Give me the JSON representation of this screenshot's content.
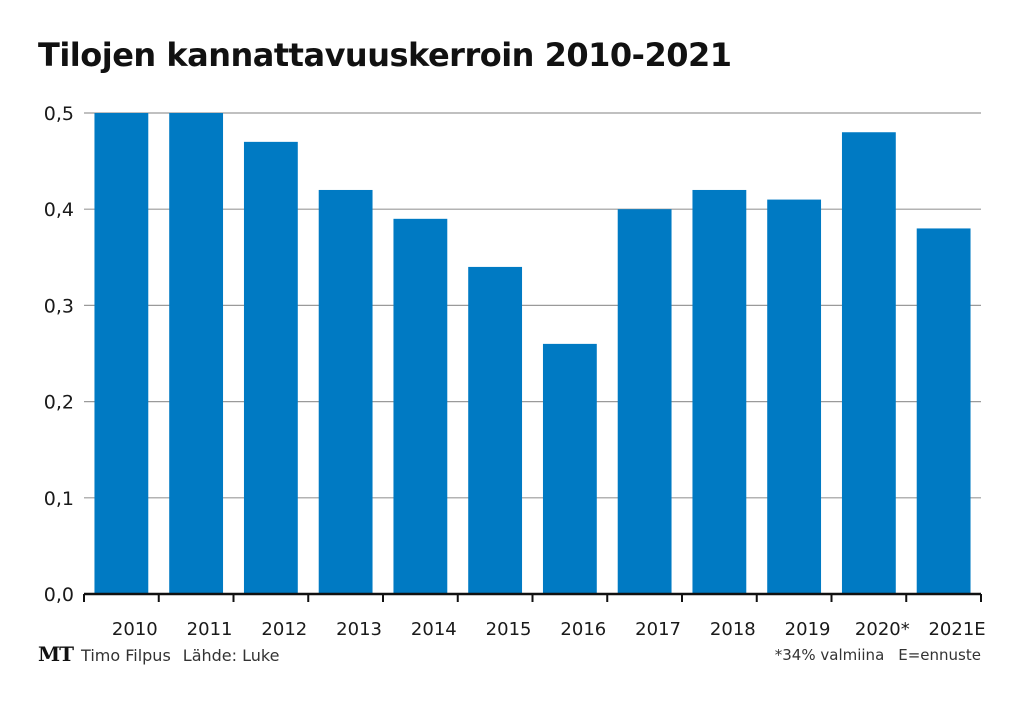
{
  "chart_data": {
    "type": "bar",
    "title": "Tilojen kannattavuuskerroin 2010-2021",
    "categories": [
      "2010",
      "2011",
      "2012",
      "2013",
      "2014",
      "2015",
      "2016",
      "2017",
      "2018",
      "2019",
      "2020*",
      "2021E"
    ],
    "values": [
      0.5,
      0.5,
      0.47,
      0.42,
      0.39,
      0.34,
      0.26,
      0.4,
      0.42,
      0.41,
      0.48,
      0.38
    ],
    "ylim": [
      0,
      0.5
    ],
    "yticks": [
      "0,0",
      "0,1",
      "0,2",
      "0,3",
      "0,4",
      "0,5"
    ],
    "xlabel": "",
    "ylabel": "",
    "grid": true,
    "bar_color": "#007ac3"
  },
  "footer": {
    "logo": "MT",
    "author": "Timo Filpus",
    "source": "Lähde: Luke",
    "note": "*34% valmiina",
    "estimate_note": "E=ennuste"
  }
}
